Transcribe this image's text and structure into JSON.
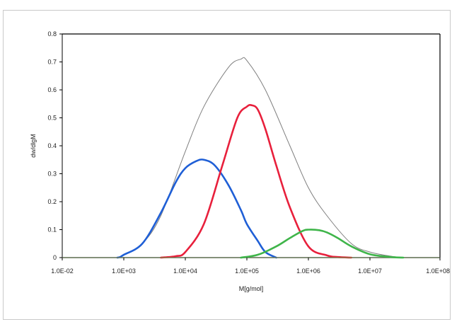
{
  "chart_data": {
    "type": "line",
    "title": "",
    "xlabel": "M[g/mol]",
    "ylabel": "dw/dlgM",
    "x_scale": "log",
    "xlim": [
      0.01,
      100000000
    ],
    "ylim": [
      0,
      0.8
    ],
    "grid": false,
    "legend": "none",
    "x_tick_values": [
      0.01,
      1000,
      10000,
      100000,
      1000000,
      10000000,
      100000000
    ],
    "x_tick_labels": [
      "1.0E-02",
      "1.0E+03",
      "1.0E+04",
      "1.0E+05",
      "1.0E+06",
      "1.0E+07",
      "1.0E+08"
    ],
    "y_ticks": [
      0,
      0.1,
      0.2,
      0.3,
      0.4,
      0.5,
      0.6,
      0.7,
      0.8
    ],
    "y_tick_labels": [
      "0",
      "0.1",
      "0.2",
      "0.3",
      "0.4",
      "0.5",
      "0.6",
      "0.7",
      "0.8"
    ],
    "series": [
      {
        "color": "#7f7f7f",
        "x": [
          400,
          1000,
          2000,
          4000,
          10000,
          20000,
          50000,
          80000,
          100000,
          200000,
          500000,
          1000000,
          2000000,
          5000000,
          10000000,
          20000000,
          30000000
        ],
        "y": [
          0.0,
          0.01,
          0.05,
          0.15,
          0.38,
          0.54,
          0.68,
          0.71,
          0.705,
          0.6,
          0.4,
          0.25,
          0.15,
          0.05,
          0.02,
          0.005,
          0.0
        ]
      },
      {
        "color": "#1f5fd6",
        "x": [
          300,
          500,
          1000,
          2000,
          4000,
          7000,
          10000,
          15000,
          20000,
          30000,
          50000,
          80000,
          100000,
          150000,
          200000,
          300000
        ],
        "y": [
          0.0,
          0.002,
          0.01,
          0.05,
          0.16,
          0.27,
          0.32,
          0.345,
          0.35,
          0.33,
          0.26,
          0.17,
          0.12,
          0.06,
          0.02,
          0.0
        ]
      },
      {
        "color": "#e8203c",
        "x": [
          4000,
          7000,
          10000,
          20000,
          40000,
          70000,
          100000,
          120000,
          150000,
          200000,
          300000,
          500000,
          1000000,
          2000000,
          3000000,
          5000000
        ],
        "y": [
          0.0,
          0.005,
          0.02,
          0.12,
          0.33,
          0.5,
          0.54,
          0.545,
          0.53,
          0.46,
          0.33,
          0.18,
          0.04,
          0.008,
          0.002,
          0.0
        ]
      },
      {
        "color": "#3fb54a",
        "x": [
          80000,
          150000,
          300000,
          500000,
          800000,
          1000000,
          1500000,
          2000000,
          3000000,
          5000000,
          10000000,
          20000000,
          30000000
        ],
        "y": [
          0.0,
          0.01,
          0.04,
          0.07,
          0.095,
          0.1,
          0.098,
          0.09,
          0.07,
          0.04,
          0.012,
          0.002,
          0.0
        ]
      }
    ]
  }
}
